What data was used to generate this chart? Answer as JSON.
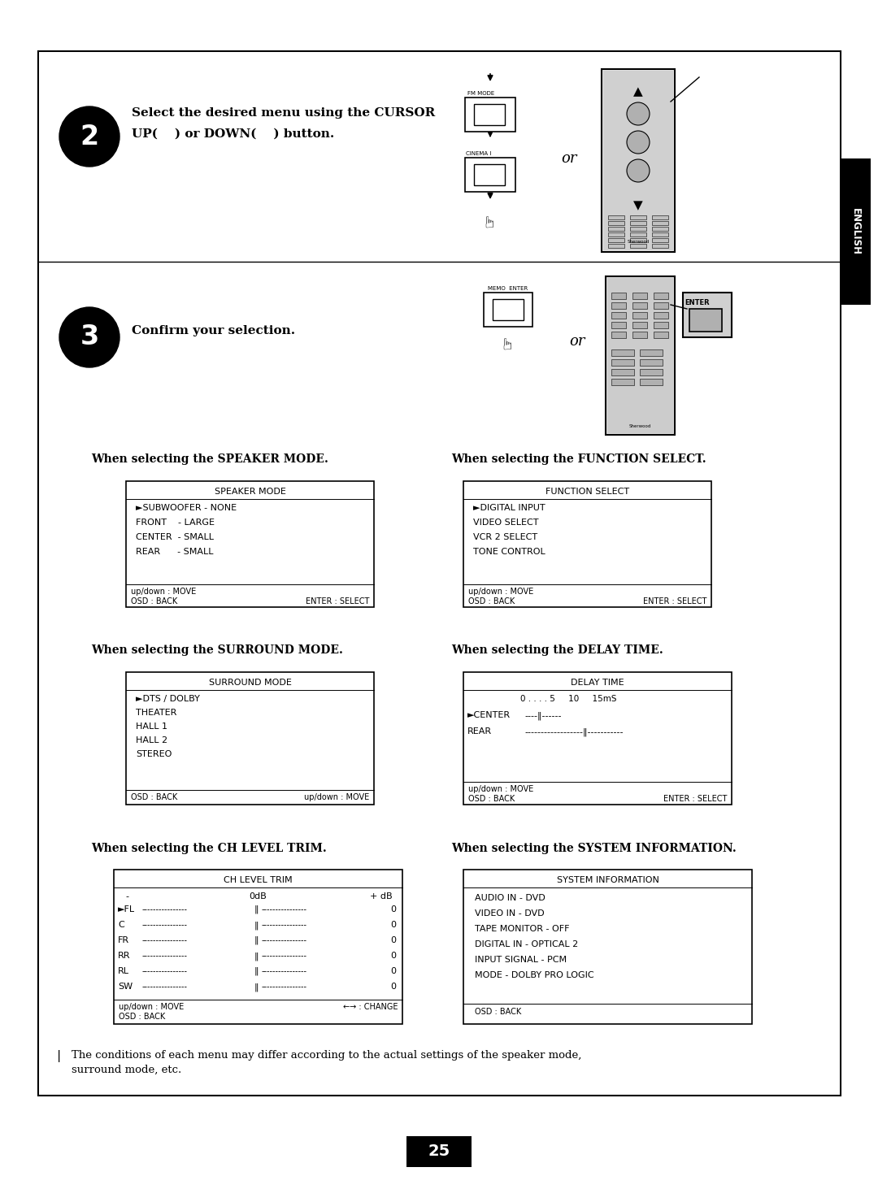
{
  "bg_color": "#ffffff",
  "page_number": "25",
  "step2_text_line1": "Select the desired menu using the CURSOR",
  "step2_text_line2": "UP(    ) or DOWN(    ) button.",
  "step3_text": "Confirm your selection.",
  "speaker_mode_title": "When selecting the SPEAKER MODE.",
  "function_select_title": "When selecting the FUNCTION SELECT.",
  "surround_mode_title": "When selecting the SURROUND MODE.",
  "delay_time_title": "When selecting the DELAY TIME.",
  "ch_level_trim_title": "When selecting the CH LEVEL TRIM.",
  "system_info_title": "When selecting the SYSTEM INFORMATION.",
  "speaker_mode_lines": [
    "►SUBWOOFER - NONE",
    "FRONT    - LARGE",
    "CENTER  - SMALL",
    "REAR      - SMALL"
  ],
  "function_select_lines": [
    "►DIGITAL INPUT",
    "VIDEO SELECT",
    "VCR 2 SELECT",
    "TONE CONTROL"
  ],
  "surround_mode_lines": [
    "►DTS / DOLBY",
    "THEATER",
    "HALL 1",
    "HALL 2",
    "STEREO"
  ],
  "ch_channels": [
    "FL",
    "C",
    "FR",
    "RR",
    "RL",
    "SW"
  ],
  "system_info_lines": [
    "AUDIO IN - DVD",
    "VIDEO IN - DVD",
    "TAPE MONITOR - OFF",
    "DIGITAL IN - OPTICAL 2",
    "INPUT SIGNAL - PCM",
    "MODE - DOLBY PRO LOGIC"
  ],
  "note_text": "The conditions of each menu may differ according to the actual settings of the speaker mode,\nsurround mode, etc."
}
